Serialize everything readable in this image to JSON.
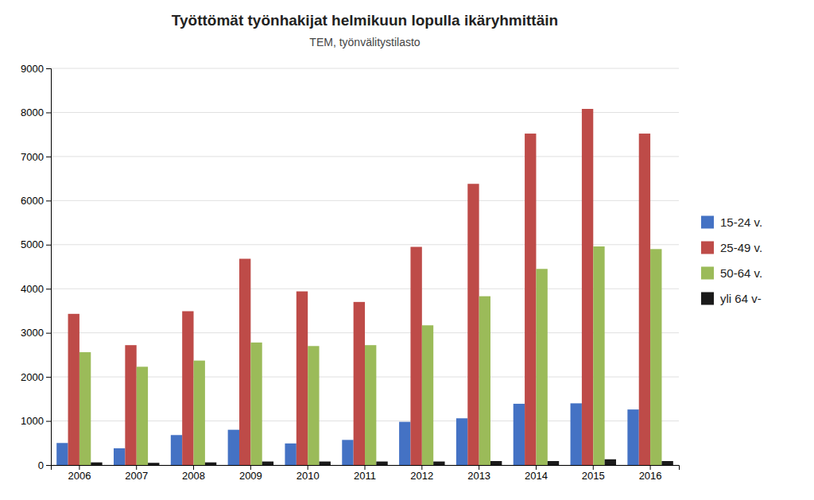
{
  "chart_data": {
    "type": "bar",
    "title": "Työttömät työnhakijat helmikuun lopulla ikäryhmittäin",
    "subtitle": "TEM, työnvälitystilasto",
    "categories": [
      "2006",
      "2007",
      "2008",
      "2009",
      "2010",
      "2011",
      "2012",
      "2013",
      "2014",
      "2015",
      "2016"
    ],
    "series": [
      {
        "name": "15-24 v.",
        "color": "#4472C4",
        "values": [
          500,
          380,
          680,
          800,
          490,
          570,
          980,
          1060,
          1390,
          1400,
          1260
        ]
      },
      {
        "name": "25-49 v.",
        "color": "#BE4B48",
        "values": [
          3430,
          2720,
          3490,
          4680,
          3940,
          3700,
          4950,
          6380,
          7520,
          8080,
          7520
        ]
      },
      {
        "name": "50-64 v.",
        "color": "#9BBB59",
        "values": [
          2560,
          2230,
          2370,
          2780,
          2700,
          2720,
          3170,
          3830,
          4450,
          4960,
          4900
        ]
      },
      {
        "name": "yli 64 v-",
        "color": "#1A1A1A",
        "values": [
          60,
          50,
          60,
          80,
          80,
          80,
          80,
          90,
          90,
          130,
          90
        ]
      }
    ],
    "ylim": [
      0,
      9000
    ],
    "yticks": [
      0,
      1000,
      2000,
      3000,
      4000,
      5000,
      6000,
      7000,
      8000,
      9000
    ],
    "grid": true,
    "legend": "right"
  }
}
